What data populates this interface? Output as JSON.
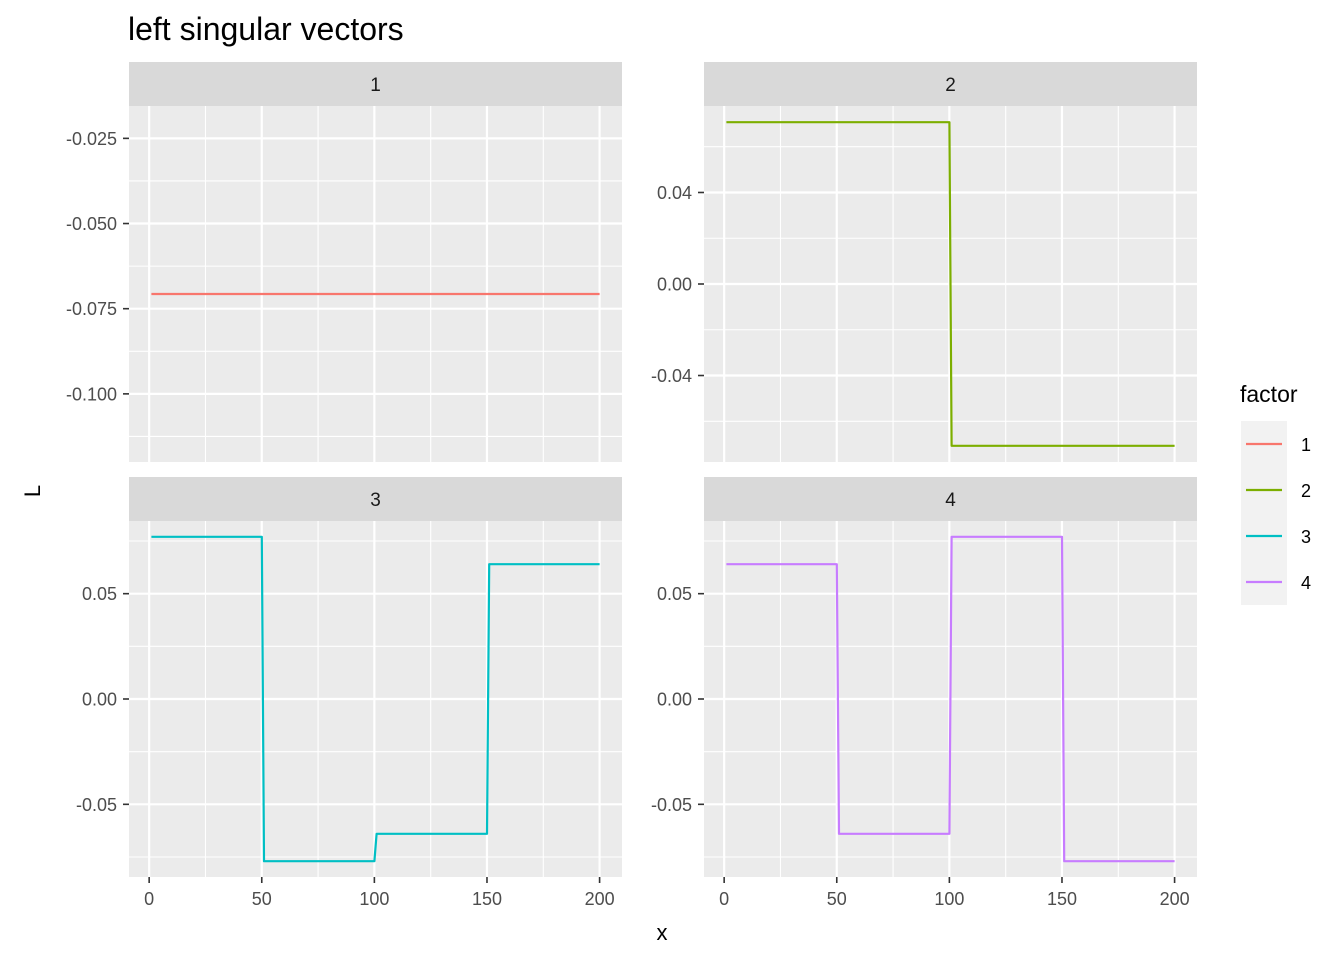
{
  "chart_data": {
    "type": "line",
    "title": "left singular vectors",
    "xlabel": "x",
    "ylabel": "L",
    "grid": true,
    "legend": {
      "title": "factor",
      "position": "right",
      "entries": [
        {
          "label": "1",
          "color": "#F8766D"
        },
        {
          "label": "2",
          "color": "#7CAE00"
        },
        {
          "label": "3",
          "color": "#00BFC4"
        },
        {
          "label": "4",
          "color": "#C77CFF"
        }
      ]
    },
    "x_ticks": [
      "0",
      "50",
      "100",
      "150",
      "200"
    ],
    "xlim": [
      -8.95,
      209.95
    ],
    "panels": [
      {
        "strip": "1",
        "series_index": 0,
        "ylim": [
          -0.12,
          -0.0155
        ],
        "y_ticks": [
          {
            "value": -0.025,
            "label": "-0.025"
          },
          {
            "value": -0.05,
            "label": "-0.050"
          },
          {
            "value": -0.075,
            "label": "-0.075"
          },
          {
            "value": -0.1,
            "label": "-0.100"
          }
        ],
        "x": [
          1,
          200
        ],
        "y": [
          -0.0707,
          -0.0707
        ]
      },
      {
        "strip": "2",
        "series_index": 1,
        "ylim": [
          -0.0778,
          0.0778
        ],
        "y_ticks": [
          {
            "value": 0.04,
            "label": "0.04"
          },
          {
            "value": 0.0,
            "label": "0.00"
          },
          {
            "value": -0.04,
            "label": "-0.04"
          }
        ],
        "x": [
          1,
          100,
          101,
          200
        ],
        "y": [
          0.0707,
          0.0707,
          -0.0707,
          -0.0707
        ]
      },
      {
        "strip": "3",
        "series_index": 2,
        "ylim": [
          -0.0845,
          0.0845
        ],
        "y_ticks": [
          {
            "value": 0.05,
            "label": "0.05"
          },
          {
            "value": 0.0,
            "label": "0.00"
          },
          {
            "value": -0.05,
            "label": "-0.05"
          }
        ],
        "x": [
          1,
          50,
          51,
          100,
          101,
          150,
          151,
          200
        ],
        "y": [
          0.077,
          0.077,
          -0.077,
          -0.077,
          -0.064,
          -0.064,
          0.064,
          0.064
        ]
      },
      {
        "strip": "4",
        "series_index": 3,
        "ylim": [
          -0.0845,
          0.0845
        ],
        "y_ticks": [
          {
            "value": 0.05,
            "label": "0.05"
          },
          {
            "value": 0.0,
            "label": "0.00"
          },
          {
            "value": -0.05,
            "label": "-0.05"
          }
        ],
        "x": [
          1,
          50,
          51,
          100,
          101,
          150,
          151,
          200
        ],
        "y": [
          0.064,
          0.064,
          -0.064,
          -0.064,
          0.077,
          0.077,
          -0.077,
          -0.077
        ]
      }
    ]
  }
}
